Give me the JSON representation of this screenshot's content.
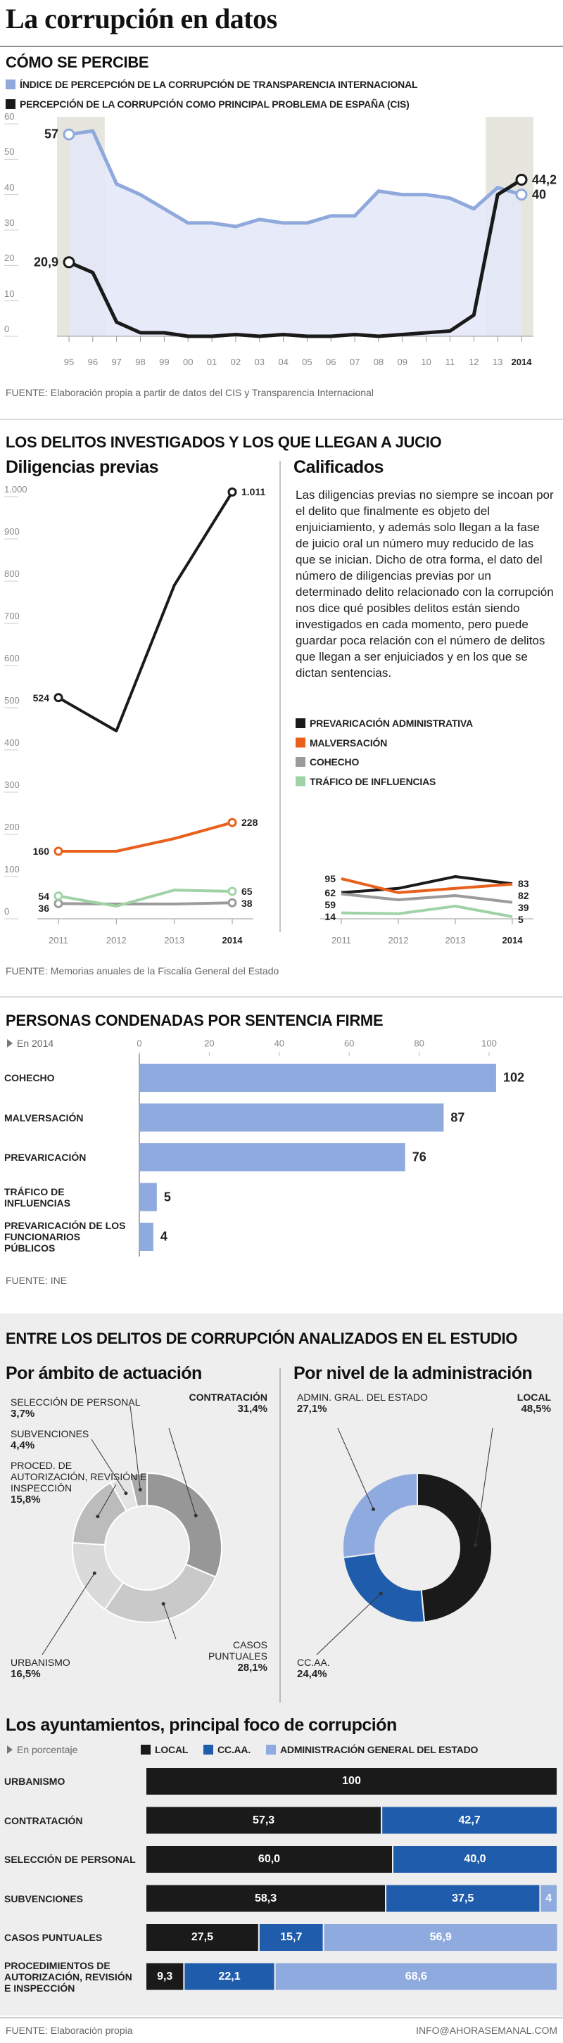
{
  "title": "La corrupción en datos",
  "footer": {
    "contact": "INFO@AHORASEMANAL.COM"
  },
  "chart_data": [
    {
      "type": "line",
      "title": "CÓMO SE PERCIBE",
      "categories": [
        "95",
        "96",
        "97",
        "98",
        "99",
        "00",
        "01",
        "02",
        "03",
        "04",
        "05",
        "06",
        "07",
        "08",
        "09",
        "10",
        "11",
        "12",
        "13",
        "2014"
      ],
      "series": [
        {
          "name": "ÍNDICE DE PERCEPCIÓN DE LA CORRUPCIÓN DE TRANSPARENCIA INTERNACIONAL",
          "color": "#8fa9dc",
          "values": [
            57,
            58,
            43,
            40,
            36,
            32,
            32,
            31,
            33,
            32,
            32,
            34,
            34,
            41,
            40,
            40,
            39,
            36,
            42,
            40
          ],
          "value_labels": [
            "57",
            null,
            null,
            null,
            null,
            null,
            null,
            null,
            null,
            null,
            null,
            null,
            null,
            null,
            null,
            null,
            null,
            null,
            null,
            "40"
          ]
        },
        {
          "name": "PERCEPCIÓN DE LA CORRUPCIÓN COMO PRINCIPAL PROBLEMA DE ESPAÑA (CIS)",
          "color": "#1a1a1a",
          "values": [
            20.9,
            18,
            4,
            1,
            1,
            0,
            0,
            0.5,
            0,
            0.5,
            0,
            0,
            0.5,
            0,
            0.5,
            1,
            1.5,
            6,
            40,
            44.2
          ],
          "value_labels": [
            "20,9",
            null,
            null,
            null,
            null,
            null,
            null,
            null,
            null,
            null,
            null,
            null,
            null,
            null,
            null,
            null,
            null,
            null,
            null,
            "44,2"
          ]
        }
      ],
      "ylim": [
        0,
        60
      ],
      "yticks": [
        0,
        10,
        20,
        30,
        40,
        50,
        60
      ],
      "source": "FUENTE: Elaboración propia a partir de datos del CIS y Transparencia Internacional"
    },
    {
      "type": "line",
      "section_title": "LOS DELITOS INVESTIGADOS Y LOS QUE LLEGAN A JUCIO",
      "title": "Diligencias previas",
      "categories": [
        "2011",
        "2012",
        "2013",
        "2014"
      ],
      "series": [
        {
          "color": "#1a1a1a",
          "values": [
            524,
            445,
            790,
            1011
          ],
          "value_labels": [
            "524",
            null,
            null,
            "1.011"
          ]
        },
        {
          "color": "#e8601c",
          "values": [
            160,
            160,
            190,
            228
          ],
          "value_labels": [
            "160",
            null,
            null,
            "228"
          ]
        },
        {
          "color": "#9b9b9b",
          "values": [
            36,
            35,
            35,
            38
          ],
          "value_labels": [
            "36",
            null,
            null,
            "38"
          ]
        },
        {
          "color": "#9fd3a6",
          "values": [
            54,
            30,
            68,
            65
          ],
          "value_labels": [
            "54",
            null,
            null,
            "65"
          ]
        }
      ],
      "ylim": [
        0,
        1000
      ],
      "yticks": [
        0,
        100,
        200,
        300,
        400,
        500,
        600,
        700,
        800,
        900,
        {
          "value": 1000,
          "label": "1.000"
        }
      ]
    },
    {
      "type": "line",
      "title": "Calificados",
      "text": "Las diligencias previas no siempre se incoan por el delito que finalmente es objeto del enjuiciamiento, y además solo llegan a la fase de juicio oral un número muy reducido de las que se inician. Dicho de otra forma, el dato del número de diligencias previas por un determinado delito relacionado con la corrupción nos dice qué posibles delitos están siendo investigados en cada momento, pero puede guardar poca relación con el número de delitos que llegan a ser enjuiciados y en los que se dictan sentencias.",
      "categories": [
        "2011",
        "2012",
        "2013",
        "2014"
      ],
      "series": [
        {
          "name": "PREVARICACIÓN ADMINISTRATIVA",
          "color": "#1a1a1a",
          "values": [
            62,
            72,
            100,
            83
          ],
          "value_labels": [
            "62",
            null,
            null,
            "83"
          ]
        },
        {
          "name": "MALVERSACIÓN",
          "color": "#e8601c",
          "values": [
            95,
            62,
            72,
            82
          ],
          "value_labels": [
            "95",
            null,
            null,
            "82"
          ]
        },
        {
          "name": "COHECHO",
          "color": "#9b9b9b",
          "values": [
            59,
            45,
            55,
            39
          ],
          "value_labels": [
            "59",
            null,
            null,
            "39"
          ]
        },
        {
          "name": "TRÁFICO DE INFLUENCIAS",
          "color": "#9fd3a6",
          "values": [
            14,
            12,
            30,
            5
          ],
          "value_labels": [
            "14",
            null,
            null,
            "5"
          ]
        }
      ],
      "ylim": [
        0,
        1000
      ],
      "source": "FUENTE: Memorias anuales de la Fiscalía General del Estado"
    },
    {
      "type": "bar",
      "orientation": "horizontal",
      "title": "PERSONAS CONDENADAS POR SENTENCIA FIRME",
      "subtitle": "En 2014",
      "categories": [
        "COHECHO",
        "MALVERSACIÓN",
        "PREVARICACIÓN",
        "TRÁFICO DE INFLUENCIAS",
        "PREVARICACIÓN DE LOS FUNCIONARIOS PÚBLICOS"
      ],
      "values": [
        102,
        87,
        76,
        5,
        4
      ],
      "color": "#8eaadf",
      "xlim": [
        0,
        100
      ],
      "xticks": [
        0,
        20,
        40,
        60,
        80,
        100
      ],
      "source": "FUENTE: INE"
    },
    {
      "type": "pie",
      "donut": true,
      "section_title": "ENTRE LOS DELITOS DE CORRUPCIÓN ANALIZADOS EN EL ESTUDIO",
      "title": "Por ámbito de actuación",
      "categories": [
        "CONTRATACIÓN",
        "CASOS PUNTUALES",
        "URBANISMO",
        "PROCED. DE AUTORIZACIÓN, REVISIÓN E INSPECCIÓN",
        "SUBVENCIONES",
        "SELECCIÓN DE PERSONAL"
      ],
      "values": [
        31.4,
        28.1,
        16.5,
        15.8,
        4.4,
        3.7
      ],
      "value_labels": [
        "31,4%",
        "28,1%",
        "16,5%",
        "15,8%",
        "4,4%",
        "3,7%"
      ],
      "colors": [
        "#979797",
        "#c9c9c9",
        "#dadada",
        "#bcbcbc",
        "#e4e4e4",
        "#a9a9a9"
      ]
    },
    {
      "type": "pie",
      "donut": true,
      "title": "Por nivel de la administración",
      "categories": [
        "LOCAL",
        "CC.AA.",
        "ADMIN. GRAL. DEL ESTADO"
      ],
      "values": [
        48.5,
        24.4,
        27.1
      ],
      "value_labels": [
        "48,5%",
        "24,4%",
        "27,1%"
      ],
      "colors": [
        "#1a1a1a",
        "#1f5cab",
        "#8eaadf"
      ]
    },
    {
      "type": "stacked_bar",
      "orientation": "horizontal",
      "title": "Los ayuntamientos, principal foco de corrupción",
      "subtitle": "En porcentaje",
      "categories": [
        "URBANISMO",
        "CONTRATACIÓN",
        "SELECCIÓN DE PERSONAL",
        "SUBVENCIONES",
        "CASOS PUNTUALES",
        "PROCEDIMIENTOS DE AUTORIZACIÓN, REVISIÓN E INSPECCIÓN"
      ],
      "series": [
        {
          "name": "LOCAL",
          "color": "#1a1a1a",
          "values": [
            100,
            57.3,
            60.0,
            58.3,
            27.5,
            9.3
          ],
          "value_labels": [
            "100",
            "57,3",
            "60,0",
            "58,3",
            "27,5",
            "9,3"
          ]
        },
        {
          "name": "CC.AA.",
          "color": "#1f5cab",
          "values": [
            null,
            42.7,
            40.0,
            37.5,
            15.7,
            22.1
          ],
          "value_labels": [
            null,
            "42,7",
            "40,0",
            "37,5",
            "15,7",
            "22,1"
          ]
        },
        {
          "name": "ADMINISTRACIÓN GENERAL DEL ESTADO",
          "color": "#8eaadf",
          "values": [
            null,
            null,
            null,
            4.2,
            56.9,
            68.6
          ],
          "value_labels": [
            null,
            null,
            null,
            "4",
            "56,9",
            "68,6"
          ]
        }
      ],
      "xlim": [
        0,
        100
      ],
      "source": "FUENTE: Elaboración propia"
    }
  ]
}
